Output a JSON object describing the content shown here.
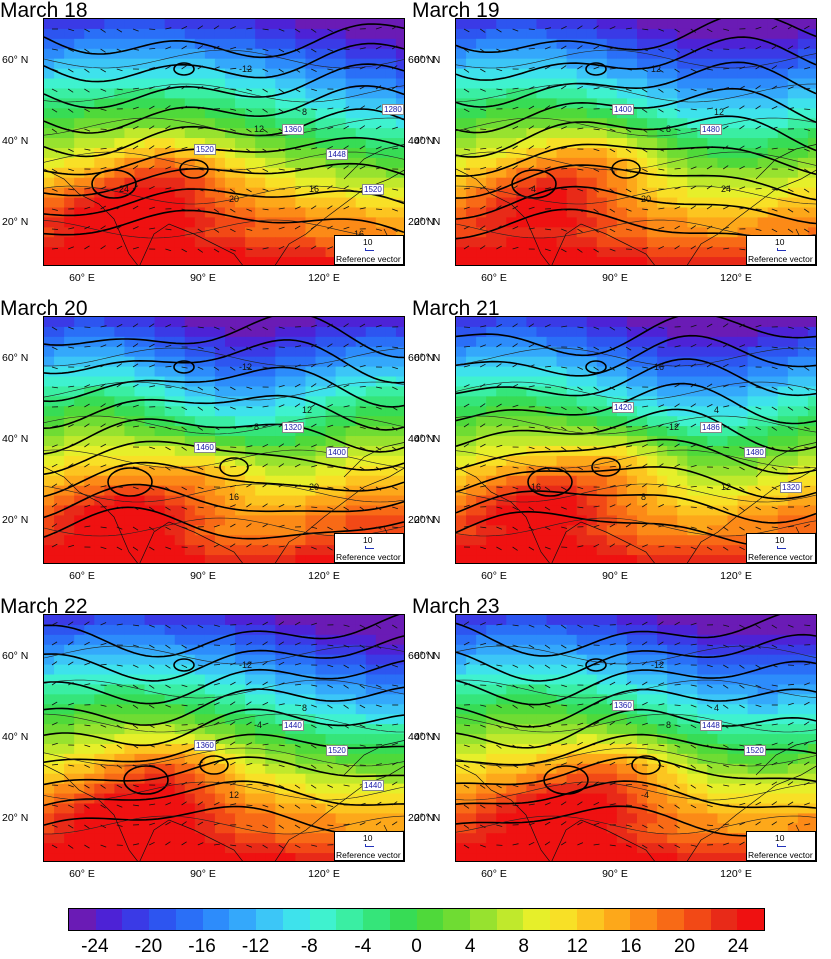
{
  "panels": [
    {
      "title": "March 18",
      "hgt_labels": [
        "1520",
        "1360",
        "1448",
        "1520",
        "1280"
      ],
      "temp_labels": [
        "-12",
        "12",
        "8",
        "20",
        "16",
        "24",
        "16"
      ]
    },
    {
      "title": "March 19",
      "hgt_labels": [
        "1400",
        "1480"
      ],
      "temp_labels": [
        "12",
        "8",
        "12",
        "20",
        "24",
        "4"
      ]
    },
    {
      "title": "March 20",
      "hgt_labels": [
        "1460",
        "1320",
        "1400"
      ],
      "temp_labels": [
        "-12",
        "8",
        "12",
        "16",
        "20"
      ]
    },
    {
      "title": "March 21",
      "hgt_labels": [
        "1420",
        "1486",
        "1480",
        "1320"
      ],
      "temp_labels": [
        "-16",
        "-12",
        "4",
        "8",
        "12",
        "16"
      ]
    },
    {
      "title": "March 22",
      "hgt_labels": [
        "1360",
        "1440",
        "1520",
        "1440"
      ],
      "temp_labels": [
        "-12",
        "-4",
        "8",
        "12"
      ]
    },
    {
      "title": "March 23",
      "hgt_labels": [
        "1360",
        "1448",
        "1520"
      ],
      "temp_labels": [
        "-12",
        "8",
        "4",
        "-4"
      ]
    }
  ],
  "axes": {
    "lat_labels": [
      "60° N",
      "40° N",
      "20° N"
    ],
    "lon_labels": [
      "60° E",
      "90° E",
      "120° E"
    ]
  },
  "reference": {
    "value": "10",
    "label": "Reference vector"
  },
  "colorbar": {
    "colors": [
      "#6a1bb5",
      "#4d22d6",
      "#3a3ae6",
      "#2d55f0",
      "#2a6ff7",
      "#2d8cfb",
      "#34a8fb",
      "#3cc6f7",
      "#3ee2ec",
      "#3ff2cf",
      "#3aeea3",
      "#35e57a",
      "#37dc55",
      "#4fd93a",
      "#6fdc33",
      "#97e22f",
      "#c0e92c",
      "#e6ef2a",
      "#f8e026",
      "#fcc520",
      "#fda81a",
      "#fc8a17",
      "#f86a16",
      "#f24916",
      "#e82a18",
      "#ef1111"
    ],
    "ticks": [
      "-24",
      "-20",
      "-16",
      "-12",
      "-8",
      "-4",
      "0",
      "4",
      "8",
      "12",
      "16",
      "20",
      "24"
    ]
  }
}
